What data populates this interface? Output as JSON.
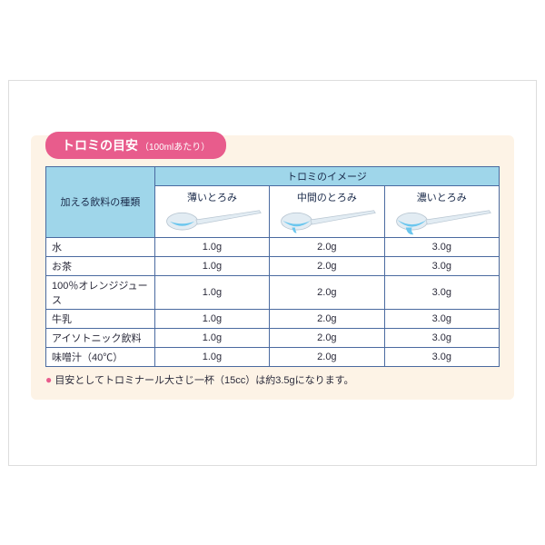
{
  "colors": {
    "pill_bg": "#e85c8c",
    "pill_text": "#ffffff",
    "panel_bg": "#fdf3e6",
    "header_bg": "#9fd6ea",
    "border": "#4a6aa0",
    "text": "#2a2a3a",
    "spoon_liquid": "#6bc6ee",
    "spoon_handle": "#dce4ec"
  },
  "title": {
    "main": "トロミの目安",
    "sub": "（100mlあたり）"
  },
  "table": {
    "beverage_header": "加える飲料の種類",
    "image_group_header": "トロミのイメージ",
    "levels": [
      {
        "label": "薄いとろみ",
        "drop": 0
      },
      {
        "label": "中間のとろみ",
        "drop": 1
      },
      {
        "label": "濃いとろみ",
        "drop": 2
      }
    ],
    "rows": [
      {
        "label": "水",
        "values": [
          "1.0g",
          "2.0g",
          "3.0g"
        ]
      },
      {
        "label": "お茶",
        "values": [
          "1.0g",
          "2.0g",
          "3.0g"
        ]
      },
      {
        "label": "100％オレンジジュース",
        "values": [
          "1.0g",
          "2.0g",
          "3.0g"
        ]
      },
      {
        "label": "牛乳",
        "values": [
          "1.0g",
          "2.0g",
          "3.0g"
        ]
      },
      {
        "label": "アイソトニック飲料",
        "values": [
          "1.0g",
          "2.0g",
          "3.0g"
        ]
      },
      {
        "label": "味噌汁（40℃）",
        "values": [
          "1.0g",
          "2.0g",
          "3.0g"
        ]
      }
    ]
  },
  "note": "目安としてトロミナール大さじ一杯（15cc）は約3.5gになります。"
}
